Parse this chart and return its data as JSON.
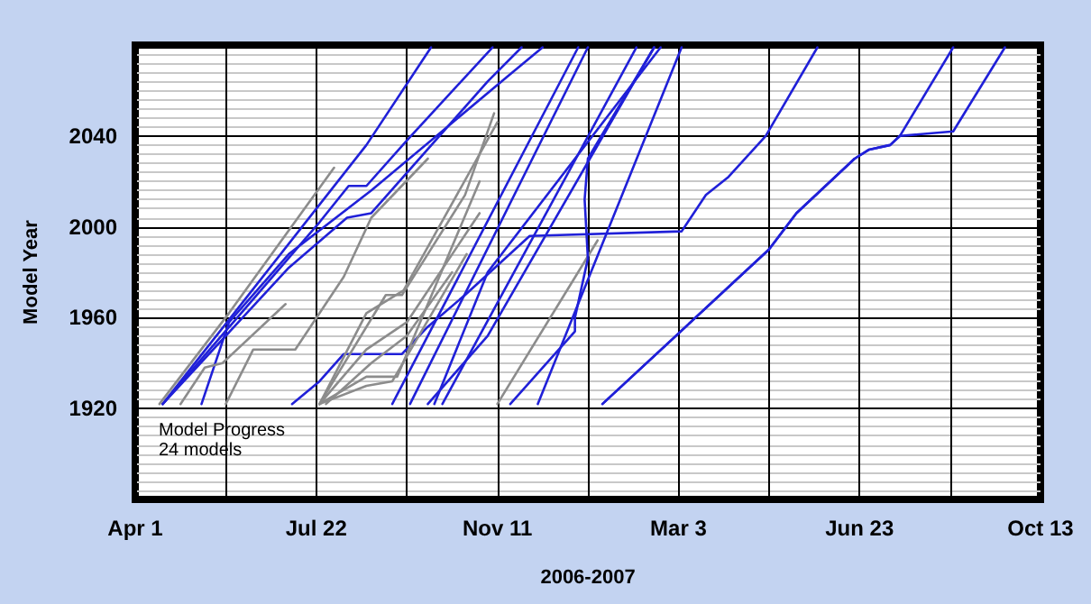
{
  "chart_data": {
    "type": "line",
    "xlabel": "2006-2007",
    "ylabel": "Model Year",
    "annotations": [
      "Model Progress",
      "24 models"
    ],
    "xlim": [
      "2006-04-01",
      "2007-10-13"
    ],
    "xticks": [
      {
        "value": "2006-04-01",
        "label": "Apr 1"
      },
      {
        "value": "2006-05-27",
        "label": null
      },
      {
        "value": "2006-07-22",
        "label": "Jul 22"
      },
      {
        "value": "2006-09-16",
        "label": null
      },
      {
        "value": "2006-11-11",
        "label": "Nov 11"
      },
      {
        "value": "2007-01-06",
        "label": null
      },
      {
        "value": "2007-03-03",
        "label": "Mar 3"
      },
      {
        "value": "2007-04-28",
        "label": null
      },
      {
        "value": "2007-06-23",
        "label": "Jun 23"
      },
      {
        "value": "2007-08-18",
        "label": null
      },
      {
        "value": "2007-10-13",
        "label": "Oct 13"
      }
    ],
    "ylim": [
      1880,
      2080
    ],
    "yticks": [
      {
        "value": 1880,
        "label": null
      },
      1920,
      1960,
      2000,
      2040,
      {
        "value": 2080,
        "label": null
      }
    ],
    "grid": true,
    "marker": "none",
    "line_style": "solid",
    "series": [
      {
        "color": "#2020d8",
        "x": [
          "2006-04-18",
          "2006-08-22",
          "2006-10-01"
        ],
        "values": [
          1922,
          2036,
          2079
        ]
      },
      {
        "color": "#2020d8",
        "x": [
          "2006-04-18",
          "2006-07-24",
          "2006-08-11",
          "2006-08-22",
          "2006-09-16",
          "2006-11-08"
        ],
        "values": [
          1922,
          2002,
          2018,
          2018,
          2038,
          2079
        ]
      },
      {
        "color": "#2020d8",
        "x": [
          "2006-04-18",
          "2006-07-05",
          "2006-08-10",
          "2006-08-25",
          "2006-11-05",
          "2006-11-26"
        ],
        "values": [
          1922,
          1982,
          2004,
          2006,
          2064,
          2079
        ]
      },
      {
        "color": "#2020d8",
        "x": [
          "2006-05-12",
          "2006-05-29",
          "2006-07-05",
          "2006-08-25",
          "2006-11-17",
          "2006-12-09"
        ],
        "values": [
          1922,
          1958,
          1988,
          2016,
          2066,
          2079
        ]
      },
      {
        "color": "#8c8c8c",
        "x": [
          "2006-04-16",
          "2006-05-29",
          "2006-08-02"
        ],
        "values": [
          1922,
          1962,
          2026
        ]
      },
      {
        "color": "#8c8c8c",
        "x": [
          "2006-04-29",
          "2006-05-14",
          "2006-05-25",
          "2006-07-03"
        ],
        "values": [
          1922,
          1938,
          1940,
          1966
        ]
      },
      {
        "color": "#8c8c8c",
        "x": [
          "2006-05-27",
          "2006-06-13",
          "2006-07-09",
          "2006-08-08",
          "2006-08-25",
          "2006-09-29"
        ],
        "values": [
          1922,
          1946,
          1946,
          1978,
          2004,
          2030
        ]
      },
      {
        "color": "#2020d8",
        "x": [
          "2006-07-07",
          "2006-07-24",
          "2006-08-08",
          "2006-09-13",
          "2006-09-29",
          "2006-10-22",
          "2006-12-01",
          "2007-03-05",
          "2007-03-20",
          "2007-04-03",
          "2007-04-26",
          "2007-05-28"
        ],
        "values": [
          1922,
          1932,
          1944,
          1944,
          1956,
          1970,
          1996,
          1998,
          2014,
          2022,
          2040,
          2079
        ]
      },
      {
        "color": "#8c8c8c",
        "x": [
          "2006-07-24",
          "2006-09-03",
          "2006-09-13",
          "2006-09-29",
          "2006-10-22",
          "2006-11-09"
        ],
        "values": [
          1922,
          1970,
          1970,
          1988,
          2014,
          2050
        ]
      },
      {
        "color": "#8c8c8c",
        "x": [
          "2006-07-24",
          "2006-08-22",
          "2006-09-14",
          "2006-11-11"
        ],
        "values": [
          1922,
          1962,
          1972,
          2046
        ]
      },
      {
        "color": "#8c8c8c",
        "x": [
          "2006-07-24",
          "2006-08-22",
          "2006-09-10",
          "2006-10-31"
        ],
        "values": [
          1922,
          1934,
          1934,
          2020
        ]
      },
      {
        "color": "#8c8c8c",
        "x": [
          "2006-07-24",
          "2006-08-22",
          "2006-09-07",
          "2006-10-23"
        ],
        "values": [
          1922,
          1930,
          1932,
          1988
        ]
      },
      {
        "color": "#8c8c8c",
        "x": [
          "2006-07-28",
          "2006-08-25",
          "2006-09-16",
          "2006-10-14"
        ],
        "values": [
          1922,
          1940,
          1952,
          1980
        ]
      },
      {
        "color": "#8c8c8c",
        "x": [
          "2006-11-11",
          "2007-01-12"
        ],
        "values": [
          1922,
          1994
        ]
      },
      {
        "color": "#2020d8",
        "x": [
          "2006-09-07",
          "2006-12-31"
        ],
        "values": [
          1922,
          2079
        ]
      },
      {
        "color": "#2020d8",
        "x": [
          "2006-09-18",
          "2007-01-06"
        ],
        "values": [
          1922,
          2079
        ]
      },
      {
        "color": "#2020d8",
        "x": [
          "2006-09-29",
          "2006-11-05",
          "2007-02-16"
        ],
        "values": [
          1922,
          1952,
          2079
        ]
      },
      {
        "color": "#2020d8",
        "x": [
          "2006-10-03",
          "2006-11-05",
          "2007-02-20"
        ],
        "values": [
          1922,
          1980,
          2079
        ]
      },
      {
        "color": "#2020d8",
        "x": [
          "2006-10-08",
          "2007-02-05"
        ],
        "values": [
          1922,
          2079
        ]
      },
      {
        "color": "#2020d8",
        "x": [
          "2006-11-19",
          "2006-12-29",
          "2006-12-29",
          "2007-01-06",
          "2007-01-04",
          "2007-01-06",
          "2007-02-16"
        ],
        "values": [
          1922,
          1954,
          1960,
          1986,
          2012,
          2030,
          2079
        ]
      },
      {
        "color": "#2020d8",
        "x": [
          "2006-12-06",
          "2007-03-05"
        ],
        "values": [
          1922,
          2079
        ]
      },
      {
        "color": "#2020d8",
        "x": [
          "2007-01-15",
          "2007-04-28",
          "2007-05-15",
          "2007-06-20",
          "2007-06-29",
          "2007-07-12",
          "2007-07-18",
          "2007-08-20"
        ],
        "values": [
          1922,
          1990,
          2006,
          2030,
          2034,
          2036,
          2040,
          2079
        ]
      },
      {
        "color": "#2020d8",
        "x": [
          "2007-01-15",
          "2007-04-28",
          "2007-05-15",
          "2007-06-20",
          "2007-06-29",
          "2007-07-12",
          "2007-07-18",
          "2007-08-20",
          "2007-09-21"
        ],
        "values": [
          1922,
          1990,
          2006,
          2030,
          2034,
          2036,
          2040,
          2042,
          2079
        ]
      },
      {
        "color": "#8c8c8c",
        "x": [
          "2006-07-24",
          "2006-08-22",
          "2006-09-16",
          "2006-10-31"
        ],
        "values": [
          1922,
          1946,
          1958,
          2006
        ]
      }
    ]
  }
}
